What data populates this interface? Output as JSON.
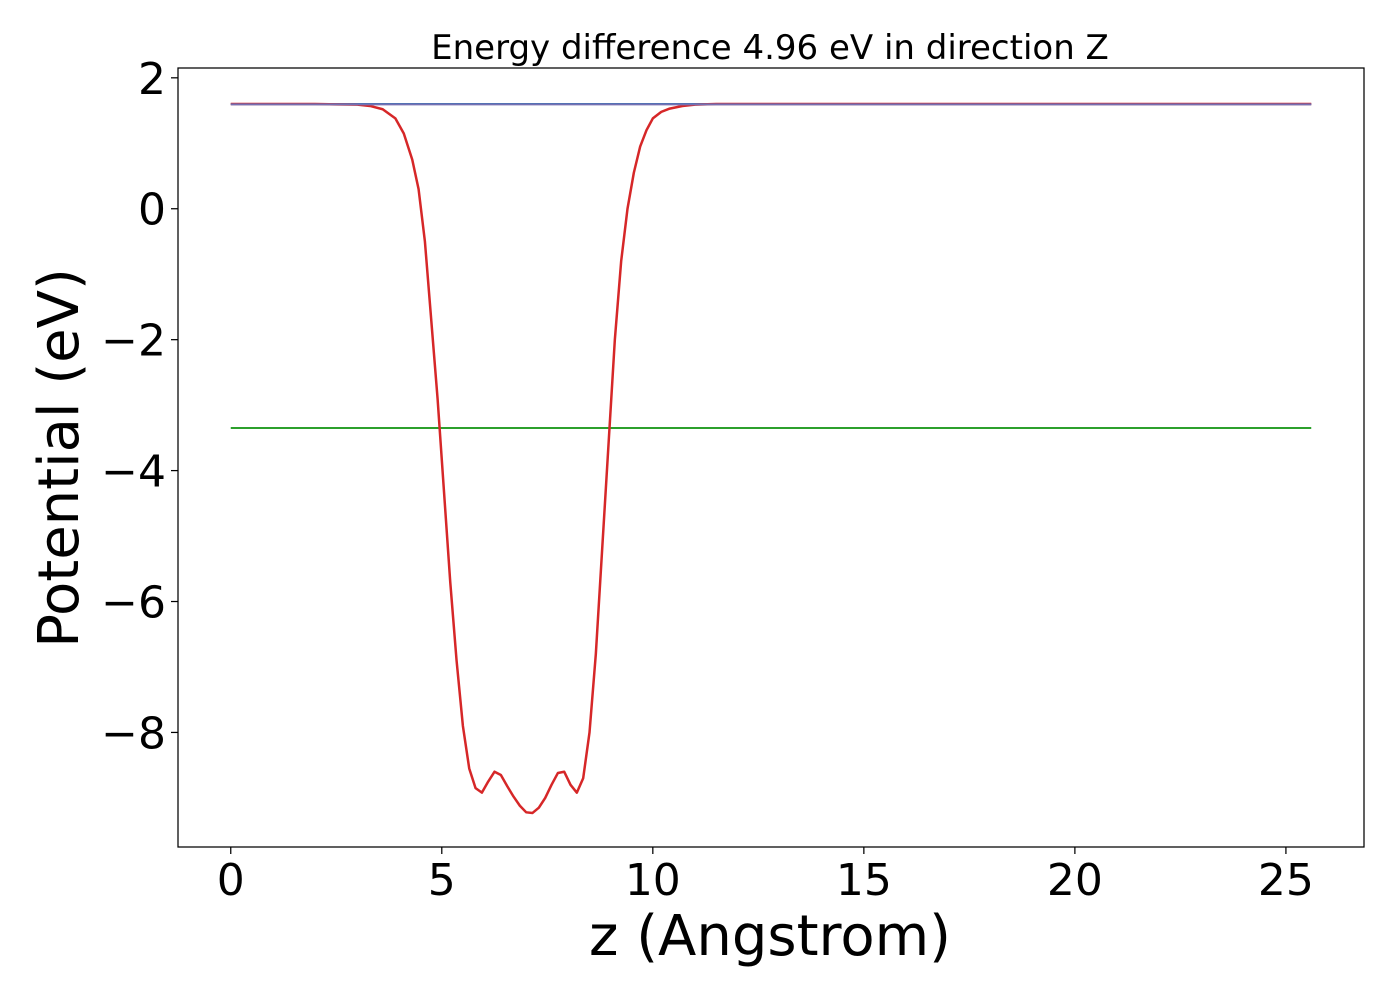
{
  "chart_data": {
    "type": "line",
    "title": "Energy difference 4.96 eV in direction Z",
    "xlabel": "z (Angstrom)",
    "ylabel": "Potential (eV)",
    "xlim": [
      -1.25,
      26.85
    ],
    "ylim": [
      -9.75,
      2.15
    ],
    "xticks": [
      0,
      5,
      10,
      15,
      20,
      25
    ],
    "xtick_labels": [
      "0",
      "5",
      "10",
      "15",
      "20",
      "25"
    ],
    "yticks": [
      2,
      0,
      -2,
      -4,
      -6,
      -8
    ],
    "ytick_labels": [
      "2",
      "0",
      "−2",
      "−4",
      "−6",
      "−8"
    ],
    "grid": false,
    "series": [
      {
        "color": "#1f77b4",
        "x": [
          0,
          25.6
        ],
        "y": [
          1.6,
          1.6
        ]
      },
      {
        "color": "#2ca02c",
        "x": [
          0,
          25.6
        ],
        "y": [
          -3.35,
          -3.35
        ]
      },
      {
        "color": "#d62728",
        "x": [
          0,
          1,
          2,
          2.5,
          3,
          3.3,
          3.6,
          3.9,
          4.1,
          4.3,
          4.45,
          4.6,
          4.75,
          4.9,
          5.05,
          5.2,
          5.35,
          5.5,
          5.65,
          5.8,
          5.95,
          6.1,
          6.25,
          6.4,
          6.55,
          6.7,
          6.85,
          7.0,
          7.15,
          7.3,
          7.45,
          7.6,
          7.75,
          7.9,
          8.05,
          8.2,
          8.35,
          8.5,
          8.65,
          8.8,
          8.95,
          9.1,
          9.25,
          9.4,
          9.55,
          9.7,
          9.85,
          10.0,
          10.2,
          10.4,
          10.7,
          11.0,
          11.5,
          12.0,
          13.0,
          15.0,
          20.0,
          25.6
        ],
        "y": [
          1.6,
          1.6,
          1.6,
          1.595,
          1.59,
          1.57,
          1.52,
          1.38,
          1.15,
          0.75,
          0.3,
          -0.5,
          -1.7,
          -2.9,
          -4.3,
          -5.7,
          -6.9,
          -7.9,
          -8.55,
          -8.85,
          -8.92,
          -8.75,
          -8.6,
          -8.65,
          -8.82,
          -8.98,
          -9.12,
          -9.22,
          -9.23,
          -9.15,
          -9.0,
          -8.8,
          -8.62,
          -8.6,
          -8.8,
          -8.92,
          -8.7,
          -8.0,
          -6.8,
          -5.2,
          -3.6,
          -2.0,
          -0.8,
          0.0,
          0.55,
          0.95,
          1.2,
          1.38,
          1.48,
          1.53,
          1.57,
          1.59,
          1.6,
          1.6,
          1.6,
          1.6,
          1.6,
          1.6
        ]
      },
      {
        "color": "#7570b3",
        "x": [
          0,
          25.6
        ],
        "y": [
          1.595,
          1.595
        ]
      }
    ]
  }
}
